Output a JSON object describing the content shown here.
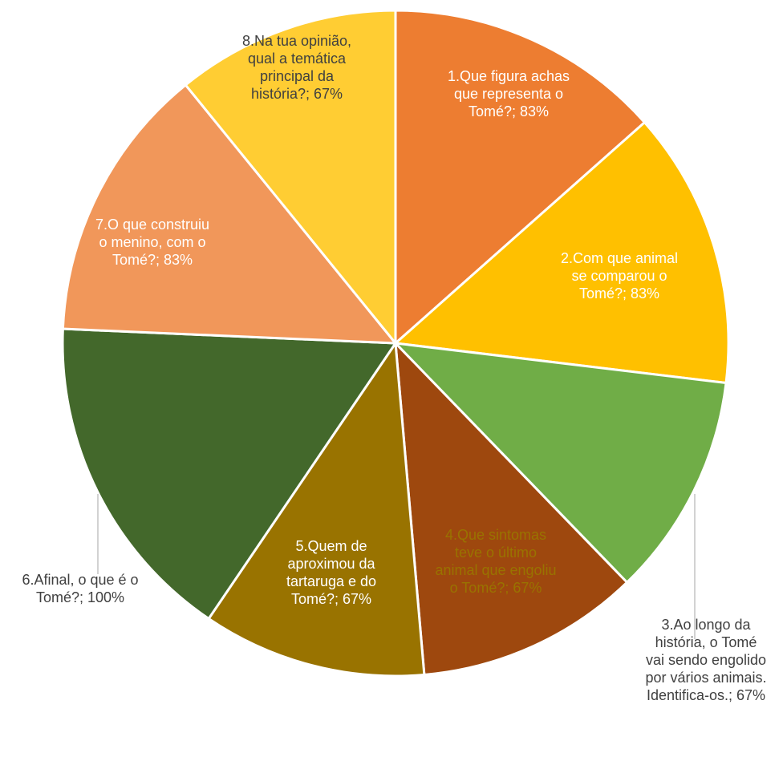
{
  "chart_data": {
    "type": "pie",
    "title": "",
    "start_angle_deg": 0,
    "direction": "clockwise",
    "slices": [
      {
        "label_lines": [
          "1.Que figura achas",
          "que representa o",
          "Tomé?; 83%"
        ],
        "value": 83,
        "color": "#ED7D31",
        "label_color": "#ffffff"
      },
      {
        "label_lines": [
          "2.Com que animal",
          "se comparou o",
          "Tomé?; 83%"
        ],
        "value": 83,
        "color": "#FFC000",
        "label_color": "#ffffff"
      },
      {
        "label_lines": [
          "3.Ao longo da",
          "história, o Tomé",
          "vai sendo engolido",
          "por vários animais.",
          "Identifica-os.; 67%"
        ],
        "value": 67,
        "color": "#70AD47",
        "label_color": "#404040"
      },
      {
        "label_lines": [
          "4.Que sintomas",
          "teve o último",
          "animal que engoliu",
          "o Tomé?; 67%"
        ],
        "value": 67,
        "color": "#9E480E",
        "label_color": "#997300"
      },
      {
        "label_lines": [
          "5.Quem de",
          "aproximou da",
          "tartaruga e do",
          "Tomé?; 67%"
        ],
        "value": 67,
        "color": "#997300",
        "label_color": "#ffffff"
      },
      {
        "label_lines": [
          "6.Afinal, o que é o",
          "Tomé?; 100%"
        ],
        "value": 100,
        "color": "#43682B",
        "label_color": "#404040"
      },
      {
        "label_lines": [
          "7.O que construiu",
          "o menino, com o",
          "Tomé?; 83%"
        ],
        "value": 83,
        "color": "#F1975A",
        "label_color": "#ffffff"
      },
      {
        "label_lines": [
          "8.Na tua opinião,",
          "qual a temática",
          "principal da",
          "história?; 67%"
        ],
        "value": 67,
        "color": "#FFCD33",
        "label_color": "#404040"
      }
    ]
  }
}
